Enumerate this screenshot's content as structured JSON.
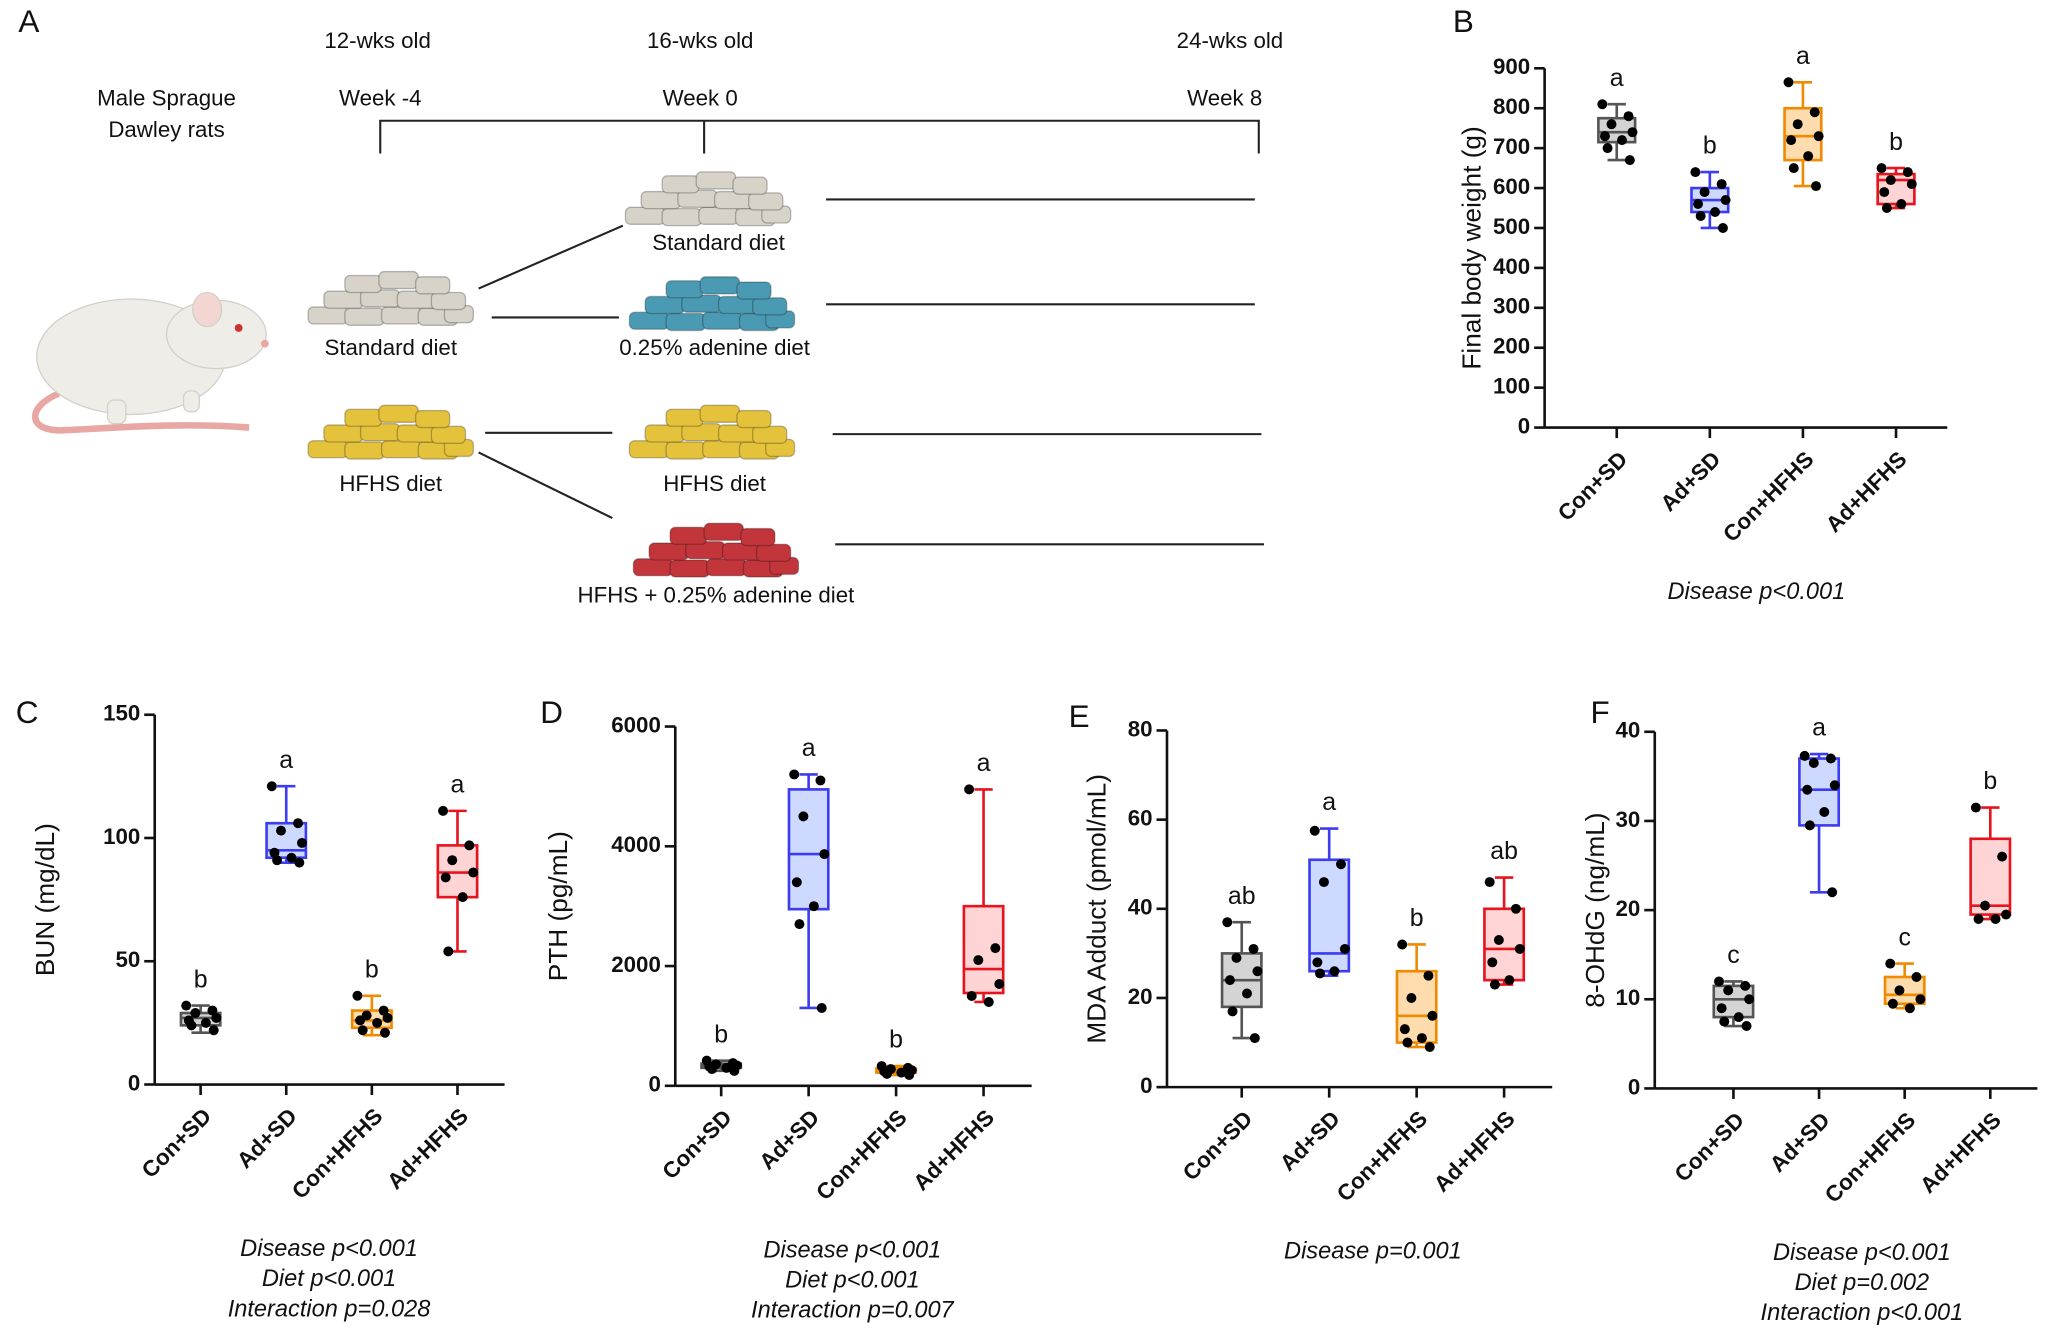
{
  "panel_a": {
    "label": "A",
    "ages": [
      "12-wks old",
      "16-wks old",
      "24-wks old"
    ],
    "weeks": [
      "Week -4",
      "Week 0",
      "Week 8"
    ],
    "animal": [
      "Male Sprague",
      "Dawley rats"
    ],
    "diets": [
      "Standard diet",
      "Standard diet",
      "0.25% adenine diet",
      "HFHS diet",
      "HFHS diet",
      "HFHS + 0.25% adenine diet"
    ]
  },
  "chart_data": [
    {
      "type": "box",
      "panel": "B",
      "ylabel": "Final body weight (g)",
      "categories": [
        "Con+SD",
        "Ad+SD",
        "Con+HFHS",
        "Ad+HFHS"
      ],
      "colors": [
        "#555555",
        "#3c3cf0",
        "#f08a00",
        "#e6141e"
      ],
      "fills": [
        "#d4d4d4",
        "#cdd9ff",
        "#ffdcae",
        "#ffd4d4"
      ],
      "ylim": [
        0,
        900
      ],
      "yticks": [
        0,
        100,
        200,
        300,
        400,
        500,
        600,
        700,
        800,
        900
      ],
      "boxes": [
        {
          "min": 670,
          "q1": 715,
          "median": 740,
          "q3": 775,
          "max": 810,
          "points": [
            810,
            780,
            760,
            740,
            730,
            720,
            700,
            670
          ]
        },
        {
          "min": 500,
          "q1": 540,
          "median": 570,
          "q3": 600,
          "max": 640,
          "points": [
            640,
            610,
            590,
            570,
            560,
            540,
            530,
            500
          ]
        },
        {
          "min": 605,
          "q1": 670,
          "median": 730,
          "q3": 800,
          "max": 865,
          "points": [
            865,
            790,
            760,
            730,
            720,
            680,
            650,
            605
          ]
        },
        {
          "min": 550,
          "q1": 560,
          "median": 620,
          "q3": 635,
          "max": 650,
          "points": [
            650,
            640,
            620,
            610,
            590,
            560,
            550
          ]
        }
      ],
      "letters": [
        "a",
        "b",
        "a",
        "b"
      ],
      "stats": [
        "Disease p<0.001"
      ]
    },
    {
      "type": "box",
      "panel": "C",
      "ylabel": "BUN (mg/dL)",
      "categories": [
        "Con+SD",
        "Ad+SD",
        "Con+HFHS",
        "Ad+HFHS"
      ],
      "colors": [
        "#555555",
        "#3c3cf0",
        "#f08a00",
        "#e6141e"
      ],
      "fills": [
        "#d4d4d4",
        "#cdd9ff",
        "#ffdcae",
        "#ffd4d4"
      ],
      "ylim": [
        0,
        150
      ],
      "yticks": [
        0,
        50,
        100,
        150
      ],
      "boxes": [
        {
          "min": 21,
          "q1": 24,
          "median": 27,
          "q3": 29,
          "max": 32,
          "points": [
            32,
            30,
            29,
            27,
            26,
            25,
            24,
            22
          ]
        },
        {
          "min": 90,
          "q1": 92,
          "median": 95,
          "q3": 106,
          "max": 121,
          "points": [
            121,
            106,
            103,
            98,
            94,
            92,
            91,
            90
          ]
        },
        {
          "min": 20,
          "q1": 23,
          "median": 26,
          "q3": 30,
          "max": 36,
          "points": [
            36,
            30,
            28,
            27,
            26,
            25,
            22,
            21
          ]
        },
        {
          "min": 54,
          "q1": 76,
          "median": 86,
          "q3": 97,
          "max": 111,
          "points": [
            111,
            97,
            91,
            86,
            84,
            76,
            54
          ]
        }
      ],
      "letters": [
        "b",
        "a",
        "b",
        "a"
      ],
      "stats": [
        "Disease p<0.001",
        "Diet p<0.001",
        "Interaction p=0.028"
      ]
    },
    {
      "type": "box",
      "panel": "D",
      "ylabel": "PTH (pg/mL)",
      "categories": [
        "Con+SD",
        "Ad+SD",
        "Con+HFHS",
        "Ad+HFHS"
      ],
      "colors": [
        "#555555",
        "#3c3cf0",
        "#f08a00",
        "#e6141e"
      ],
      "fills": [
        "#d4d4d4",
        "#cdd9ff",
        "#ffdcae",
        "#ffd4d4"
      ],
      "ylim": [
        0,
        6000
      ],
      "yticks": [
        0,
        2000,
        4000,
        6000
      ],
      "boxes": [
        {
          "min": 250,
          "q1": 300,
          "median": 330,
          "q3": 370,
          "max": 420,
          "points": [
            420,
            380,
            360,
            340,
            320,
            300,
            280,
            250
          ]
        },
        {
          "min": 1300,
          "q1": 2950,
          "median": 3870,
          "q3": 4950,
          "max": 5200,
          "points": [
            5200,
            5100,
            4500,
            3870,
            3400,
            3000,
            2700,
            1300
          ]
        },
        {
          "min": 180,
          "q1": 220,
          "median": 260,
          "q3": 290,
          "max": 330,
          "points": [
            330,
            300,
            280,
            260,
            240,
            220,
            200,
            180
          ]
        },
        {
          "min": 1400,
          "q1": 1550,
          "median": 1950,
          "q3": 3000,
          "max": 4950,
          "points": [
            4950,
            2300,
            2100,
            1700,
            1500,
            1400
          ]
        }
      ],
      "letters": [
        "b",
        "a",
        "b",
        "a"
      ],
      "stats": [
        "Disease p<0.001",
        "Diet p<0.001",
        "Interaction p=0.007"
      ]
    },
    {
      "type": "box",
      "panel": "E",
      "ylabel": "MDA Adduct (pmol/mL)",
      "categories": [
        "Con+SD",
        "Ad+SD",
        "Con+HFHS",
        "Ad+HFHS"
      ],
      "colors": [
        "#555555",
        "#3c3cf0",
        "#f08a00",
        "#e6141e"
      ],
      "fills": [
        "#d4d4d4",
        "#cdd9ff",
        "#ffdcae",
        "#ffd4d4"
      ],
      "ylim": [
        0,
        80
      ],
      "yticks": [
        0,
        20,
        40,
        60,
        80
      ],
      "boxes": [
        {
          "min": 11,
          "q1": 18,
          "median": 24,
          "q3": 30,
          "max": 37,
          "points": [
            37,
            31,
            29,
            26,
            24,
            21,
            17,
            11
          ]
        },
        {
          "min": 25,
          "q1": 26,
          "median": 30,
          "q3": 51,
          "max": 58,
          "points": [
            57.5,
            50,
            46,
            31,
            28,
            26,
            25.5
          ]
        },
        {
          "min": 9,
          "q1": 10,
          "median": 16,
          "q3": 26,
          "max": 32,
          "points": [
            32,
            25,
            20,
            16,
            13,
            11,
            10,
            9
          ]
        },
        {
          "min": 23,
          "q1": 24,
          "median": 31,
          "q3": 40,
          "max": 47,
          "points": [
            46,
            40,
            33,
            31,
            28,
            24,
            23
          ]
        }
      ],
      "letters": [
        "ab",
        "a",
        "b",
        "ab"
      ],
      "stats": [
        "Disease p=0.001"
      ]
    },
    {
      "type": "box",
      "panel": "F",
      "ylabel": "8-OHdG (ng/mL)",
      "categories": [
        "Con+SD",
        "Ad+SD",
        "Con+HFHS",
        "Ad+HFHS"
      ],
      "colors": [
        "#555555",
        "#3c3cf0",
        "#f08a00",
        "#e6141e"
      ],
      "fills": [
        "#d4d4d4",
        "#cdd9ff",
        "#ffdcae",
        "#ffd4d4"
      ],
      "ylim": [
        0,
        40
      ],
      "yticks": [
        0,
        10,
        20,
        30,
        40
      ],
      "boxes": [
        {
          "min": 7,
          "q1": 8,
          "median": 10,
          "q3": 11.5,
          "max": 12,
          "points": [
            12,
            11.5,
            11,
            10,
            9,
            8,
            7.5,
            7
          ]
        },
        {
          "min": 22,
          "q1": 29.5,
          "median": 33.5,
          "q3": 37,
          "max": 37.5,
          "points": [
            37.3,
            37,
            36.5,
            34,
            33.5,
            31,
            29.5,
            22
          ]
        },
        {
          "min": 9,
          "q1": 9.5,
          "median": 10.5,
          "q3": 12.5,
          "max": 14,
          "points": [
            14,
            12.5,
            11,
            10,
            9.5,
            9
          ]
        },
        {
          "min": 19,
          "q1": 19.5,
          "median": 20.5,
          "q3": 28,
          "max": 31.5,
          "points": [
            31.5,
            26,
            20.5,
            19.5,
            19,
            19
          ]
        }
      ],
      "letters": [
        "c",
        "a",
        "c",
        "b"
      ],
      "stats": [
        "Disease p<0.001",
        "Diet p=0.002",
        "Interaction p<0.001"
      ]
    }
  ]
}
